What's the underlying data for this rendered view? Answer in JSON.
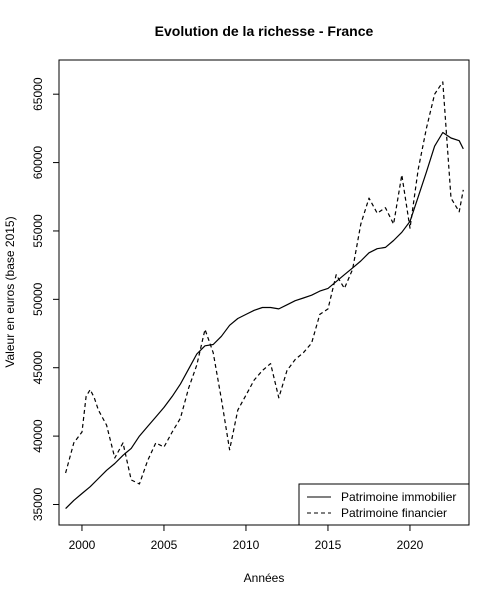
{
  "chart_data": {
    "type": "line",
    "title": "Evolution de la richesse -  France",
    "xlabel": "Années",
    "ylabel": "Valeur en euros (base 2015)",
    "xlim": [
      1998.6,
      2023.6
    ],
    "ylim": [
      33500,
      67500
    ],
    "x_ticks": [
      2000,
      2005,
      2010,
      2015,
      2020
    ],
    "y_ticks": [
      35000,
      40000,
      45000,
      50000,
      55000,
      60000,
      65000
    ],
    "x_tick_labels": [
      "2000",
      "2005",
      "2010",
      "2015",
      "2020"
    ],
    "y_tick_labels": [
      "35000",
      "40000",
      "45000",
      "50000",
      "55000",
      "60000",
      "65000"
    ],
    "grid": false,
    "legend_position": "bottom-right",
    "series": [
      {
        "name": "Patrimoine immobilier",
        "line_style": "solid",
        "color": "#000000",
        "x": [
          1999.0,
          1999.5,
          2000.0,
          2000.5,
          2001.0,
          2001.5,
          2002.0,
          2002.5,
          2003.0,
          2003.5,
          2004.0,
          2004.5,
          2005.0,
          2005.5,
          2006.0,
          2006.5,
          2007.0,
          2007.5,
          2008.0,
          2008.5,
          2009.0,
          2009.5,
          2010.0,
          2010.5,
          2011.0,
          2011.5,
          2012.0,
          2012.5,
          2013.0,
          2013.5,
          2014.0,
          2014.5,
          2015.0,
          2015.5,
          2016.0,
          2016.5,
          2017.0,
          2017.5,
          2018.0,
          2018.5,
          2019.0,
          2019.5,
          2020.0,
          2020.5,
          2021.0,
          2021.5,
          2022.0,
          2022.5,
          2023.0,
          2023.25
        ],
        "values": [
          34700,
          35300,
          35800,
          36300,
          36900,
          37500,
          38000,
          38600,
          39100,
          40000,
          40700,
          41400,
          42100,
          42900,
          43800,
          44900,
          46000,
          46600,
          46700,
          47300,
          48100,
          48600,
          48900,
          49200,
          49400,
          49400,
          49300,
          49600,
          49900,
          50100,
          50300,
          50600,
          50800,
          51300,
          51800,
          52300,
          52800,
          53400,
          53700,
          53800,
          54300,
          54900,
          55700,
          57500,
          59300,
          61200,
          62200,
          61800,
          61600,
          61000
        ]
      },
      {
        "name": "Patrimoine financier",
        "line_style": "dashed",
        "color": "#000000",
        "x": [
          1999.0,
          1999.5,
          2000.0,
          2000.25,
          2000.5,
          2000.75,
          2001.0,
          2001.5,
          2002.0,
          2002.5,
          2003.0,
          2003.5,
          2004.0,
          2004.5,
          2005.0,
          2005.5,
          2006.0,
          2006.5,
          2007.0,
          2007.5,
          2008.0,
          2008.5,
          2009.0,
          2009.5,
          2010.0,
          2010.5,
          2011.0,
          2011.5,
          2012.0,
          2012.5,
          2013.0,
          2013.5,
          2014.0,
          2014.5,
          2015.0,
          2015.5,
          2016.0,
          2016.5,
          2017.0,
          2017.5,
          2018.0,
          2018.5,
          2019.0,
          2019.5,
          2020.0,
          2020.5,
          2021.0,
          2021.5,
          2022.0,
          2022.5,
          2023.0,
          2023.25
        ],
        "values": [
          37300,
          39500,
          40300,
          42900,
          43400,
          42800,
          41900,
          40800,
          38400,
          39500,
          36800,
          36500,
          38200,
          39500,
          39200,
          40300,
          41300,
          43500,
          45200,
          47800,
          46100,
          42700,
          39000,
          41900,
          43000,
          44100,
          44800,
          45300,
          42800,
          44800,
          45600,
          46100,
          46800,
          48900,
          49300,
          51800,
          50800,
          52200,
          55500,
          57400,
          56300,
          56700,
          55500,
          59100,
          55200,
          59500,
          62500,
          65000,
          65900,
          57400,
          56400,
          58000
        ]
      }
    ]
  }
}
